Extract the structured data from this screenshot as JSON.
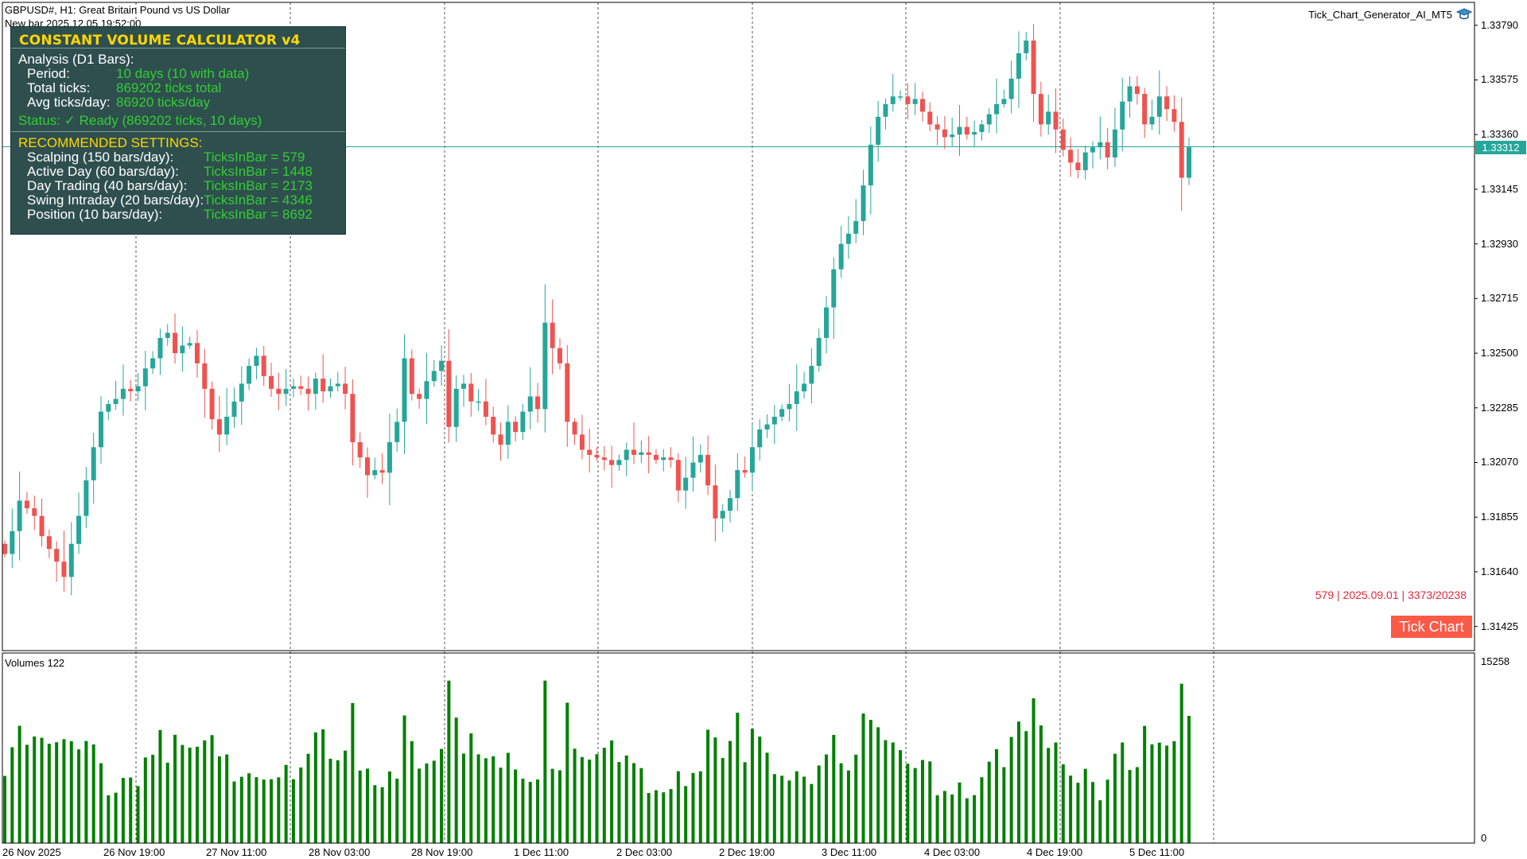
{
  "header": {
    "symbol_line": "GBPUSD#, H1:  Great Britain Pound vs US Dollar",
    "new_bar_line": "New bar 2025.12.05 19:52:00",
    "ea_name": "Tick_Chart_Generator_AI_MT5"
  },
  "panel": {
    "title": "CONSTANT VOLUME CALCULATOR v4",
    "analysis_label": "Analysis (D1 Bars):",
    "period_label": "Period:",
    "period_value": "10 days (10 with data)",
    "total_label": "Total ticks:",
    "total_value": "869202 ticks total",
    "avg_label": "Avg ticks/day:",
    "avg_value": "86920 ticks/day",
    "status": "Status: ✓ Ready (869202 ticks, 10 days)",
    "recommended": "RECOMMENDED SETTINGS:",
    "settings": [
      {
        "label": "Scalping (150 bars/day):",
        "value": "TicksInBar = 579"
      },
      {
        "label": "Active Day (60 bars/day):",
        "value": "TicksInBar = 1448"
      },
      {
        "label": "Day Trading (40 bars/day):",
        "value": "TicksInBar = 2173"
      },
      {
        "label": "Swing Intraday (20 bars/day):",
        "value": "TicksInBar = 4346"
      },
      {
        "label": "Position (10 bars/day):",
        "value": "TicksInBar = 8692"
      }
    ]
  },
  "overlay": {
    "info_line": "579 | 2025.09.01 | 3373/20238",
    "tick_chart_button": "Tick Chart"
  },
  "price_axis": {
    "labels": [
      "1.33790",
      "1.33575",
      "1.33360",
      "1.33145",
      "1.32930",
      "1.32715",
      "1.32500",
      "1.32285",
      "1.32070",
      "1.31855",
      "1.31640",
      "1.31425"
    ],
    "current_price": "1.33312"
  },
  "volume_panel": {
    "label": "Volumes 122",
    "max_label": "15258",
    "min_label": "0"
  },
  "time_axis": {
    "labels": [
      "26 Nov 2025",
      "26 Nov 19:00",
      "27 Nov 11:00",
      "28 Nov 03:00",
      "28 Nov 19:00",
      "1 Dec 11:00",
      "2 Dec 03:00",
      "2 Dec 19:00",
      "3 Dec 11:00",
      "4 Dec 03:00",
      "4 Dec 19:00",
      "5 Dec 11:00"
    ]
  },
  "colors": {
    "bull": "#26a69a",
    "bear": "#ef5350",
    "volume": "#008000",
    "panel_bg": "#2f4f4f",
    "title": "#ffd700",
    "value": "#32cd32"
  },
  "chart_data": {
    "type": "candlestick",
    "symbol": "GBPUSD#",
    "timeframe": "H1",
    "price_range": [
      1.3133,
      1.3388
    ],
    "closes": [
      1.3171,
      1.318,
      1.3192,
      1.3189,
      1.3186,
      1.3178,
      1.3173,
      1.3168,
      1.3162,
      1.3175,
      1.3186,
      1.32,
      1.3213,
      1.3227,
      1.323,
      1.3232,
      1.3236,
      1.3235,
      1.3237,
      1.3244,
      1.3248,
      1.3256,
      1.3258,
      1.325,
      1.3253,
      1.3254,
      1.3246,
      1.3236,
      1.3224,
      1.3218,
      1.3225,
      1.3231,
      1.3238,
      1.3245,
      1.3249,
      1.3241,
      1.3236,
      1.3234,
      1.3236,
      1.3237,
      1.3236,
      1.3234,
      1.324,
      1.3235,
      1.3237,
      1.3238,
      1.3234,
      1.3215,
      1.3209,
      1.3202,
      1.3204,
      1.3203,
      1.3215,
      1.3223,
      1.3248,
      1.3234,
      1.3232,
      1.3239,
      1.3243,
      1.3247,
      1.3221,
      1.3236,
      1.3238,
      1.3231,
      1.3231,
      1.3225,
      1.3218,
      1.3214,
      1.3223,
      1.3219,
      1.3227,
      1.3233,
      1.3228,
      1.3262,
      1.3252,
      1.3246,
      1.3223,
      1.3218,
      1.3212,
      1.321,
      1.3209,
      1.3208,
      1.3206,
      1.3208,
      1.3212,
      1.321,
      1.3211,
      1.321,
      1.3208,
      1.3209,
      1.3208,
      1.3196,
      1.3201,
      1.3207,
      1.321,
      1.3198,
      1.3185,
      1.3188,
      1.3193,
      1.3204,
      1.3203,
      1.3213,
      1.322,
      1.3222,
      1.3225,
      1.3228,
      1.323,
      1.3235,
      1.3238,
      1.3245,
      1.3256,
      1.3268,
      1.3283,
      1.3293,
      1.3297,
      1.3302,
      1.3316,
      1.3332,
      1.3343,
      1.3348,
      1.3351,
      1.3351,
      1.3348,
      1.335,
      1.3345,
      1.334,
      1.3338,
      1.3335,
      1.3336,
      1.3339,
      1.3336,
      1.3337,
      1.334,
      1.3344,
      1.3348,
      1.335,
      1.3358,
      1.3368,
      1.3373,
      1.3352,
      1.334,
      1.3345,
      1.3338,
      1.333,
      1.3325,
      1.3322,
      1.3329,
      1.3331,
      1.3333,
      1.3327,
      1.3338,
      1.3349,
      1.3355,
      1.3352,
      1.334,
      1.3343,
      1.3351,
      1.3346,
      1.3341,
      1.3319,
      1.3331
    ]
  }
}
